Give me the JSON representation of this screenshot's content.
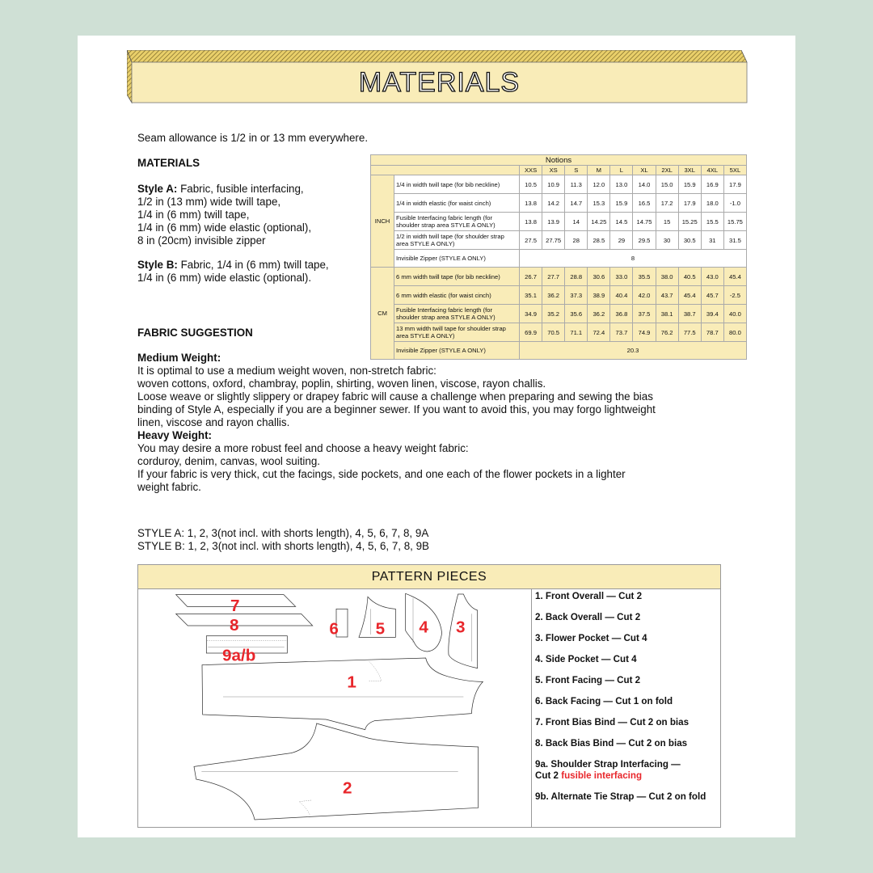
{
  "colors": {
    "background": "#cfe0d5",
    "accent_yellow": "#f9ecb8",
    "label_red": "#e8262b"
  },
  "header": {
    "title": "MATERIALS"
  },
  "intro": {
    "seam_allowance": "Seam allowance is 1/2 in or 13 mm everywhere."
  },
  "materials": {
    "heading": "MATERIALS",
    "style_a_label": "Style A:",
    "style_a_lines": [
      " Fabric, fusible interfacing,",
      "1/2 in (13 mm) wide twill tape,",
      "1/4 in (6 mm) twill tape,",
      "1/4 in (6 mm) wide elastic (optional),",
      "8 in (20cm) invisible zipper"
    ],
    "style_b_label": "Style B:",
    "style_b_lines": [
      " Fabric, 1/4 in (6 mm) twill tape,",
      "1/4 in (6 mm) wide elastic (optional)."
    ]
  },
  "notions_table": {
    "title": "Notions",
    "sizes": [
      "XXS",
      "XS",
      "S",
      "M",
      "L",
      "XL",
      "2XL",
      "3XL",
      "4XL",
      "5XL"
    ],
    "groups": [
      {
        "unit": "INCH",
        "rows": [
          {
            "label": "1/4 in width twill tape (for bib neckline)",
            "values": [
              "10.5",
              "10.9",
              "11.3",
              "12.0",
              "13.0",
              "14.0",
              "15.0",
              "15.9",
              "16.9",
              "17.9"
            ]
          },
          {
            "label": "1/4 in width elastic (for waist cinch)",
            "values": [
              "13.8",
              "14.2",
              "14.7",
              "15.3",
              "15.9",
              "16.5",
              "17.2",
              "17.9",
              "18.0",
              "-1.0"
            ]
          },
          {
            "label": "Fusible Interfacing fabric length (for shoulder strap area STYLE A ONLY)",
            "values": [
              "13.8",
              "13.9",
              "14",
              "14.25",
              "14.5",
              "14.75",
              "15",
              "15.25",
              "15.5",
              "15.75"
            ]
          },
          {
            "label": "1/2 in width twill tape (for shoulder strap area STYLE A ONLY)",
            "values": [
              "27.5",
              "27.75",
              "28",
              "28.5",
              "29",
              "29.5",
              "30",
              "30.5",
              "31",
              "31.5"
            ]
          },
          {
            "label": "Invisible Zipper (STYLE A ONLY)",
            "span_value": "8"
          }
        ]
      },
      {
        "unit": "CM",
        "rows": [
          {
            "label": "6 mm width twill tape (for bib neckline)",
            "values": [
              "26.7",
              "27.7",
              "28.8",
              "30.6",
              "33.0",
              "35.5",
              "38.0",
              "40.5",
              "43.0",
              "45.4"
            ]
          },
          {
            "label": "6 mm width elastic (for waist cinch)",
            "values": [
              "35.1",
              "36.2",
              "37.3",
              "38.9",
              "40.4",
              "42.0",
              "43.7",
              "45.4",
              "45.7",
              "-2.5"
            ]
          },
          {
            "label": "Fusible Interfacing fabric length (for shoulder strap area STYLE A ONLY)",
            "values": [
              "34.9",
              "35.2",
              "35.6",
              "36.2",
              "36.8",
              "37.5",
              "38.1",
              "38.7",
              "39.4",
              "40.0"
            ]
          },
          {
            "label": "13 mm width twill tape for shoulder strap area STYLE A ONLY)",
            "values": [
              "69.9",
              "70.5",
              "71.1",
              "72.4",
              "73.7",
              "74.9",
              "76.2",
              "77.5",
              "78.7",
              "80.0"
            ]
          },
          {
            "label": "Invisible Zipper (STYLE A ONLY)",
            "span_value": "20.3"
          }
        ]
      }
    ]
  },
  "fabric": {
    "heading": "FABRIC SUGGESTION",
    "medium_heading": "Medium Weight:",
    "medium_lines": [
      "It is optimal to use a medium weight woven, non-stretch fabric:",
      "woven cottons, oxford, chambray, poplin, shirting, woven linen, viscose, rayon challis.",
      "Loose weave or slightly slippery or drapey fabric will cause a challenge when preparing and sewing the bias",
      "binding of Style A, especially if you are a beginner sewer. If you want to avoid this, you may forgo lightweight",
      "linen, viscose and rayon challis."
    ],
    "heavy_heading": "Heavy Weight:",
    "heavy_lines": [
      "You may desire a more robust feel and choose a heavy weight fabric:",
      "corduroy, denim, canvas, wool suiting.",
      "If your fabric is very thick, cut the facings, side pockets, and one each of the flower pockets in a lighter",
      "weight fabric."
    ]
  },
  "styles": {
    "style_a": "STYLE A: 1, 2, 3(not incl. with shorts length), 4, 5, 6, 7, 8, 9A",
    "style_b": "STYLE B: 1, 2, 3(not incl. with shorts length), 4, 5, 6, 7, 8, 9B"
  },
  "pattern_pieces": {
    "title": "PATTERN PIECES",
    "labels": {
      "p1": "1",
      "p2": "2",
      "p3": "3",
      "p4": "4",
      "p5": "5",
      "p6": "6",
      "p7": "7",
      "p8": "8",
      "p9": "9a/b"
    },
    "list": [
      "1. Front Overall — Cut 2",
      "2. Back Overall — Cut 2",
      "3. Flower Pocket — Cut 4",
      "4. Side Pocket — Cut 4",
      "5. Front Facing — Cut  2",
      "6. Back Facing — Cut  1 on fold",
      "7. Front Bias Bind — Cut 2 on bias",
      "8. Back Bias Bind — Cut 2 on bias",
      "9a. Shoulder Strap Interfacing —"
    ],
    "item9a_line2": "Cut 2 ",
    "item9a_highlight": "fusible interfacing",
    "item9b": "9b. Alternate Tie Strap — Cut 2 on fold"
  }
}
